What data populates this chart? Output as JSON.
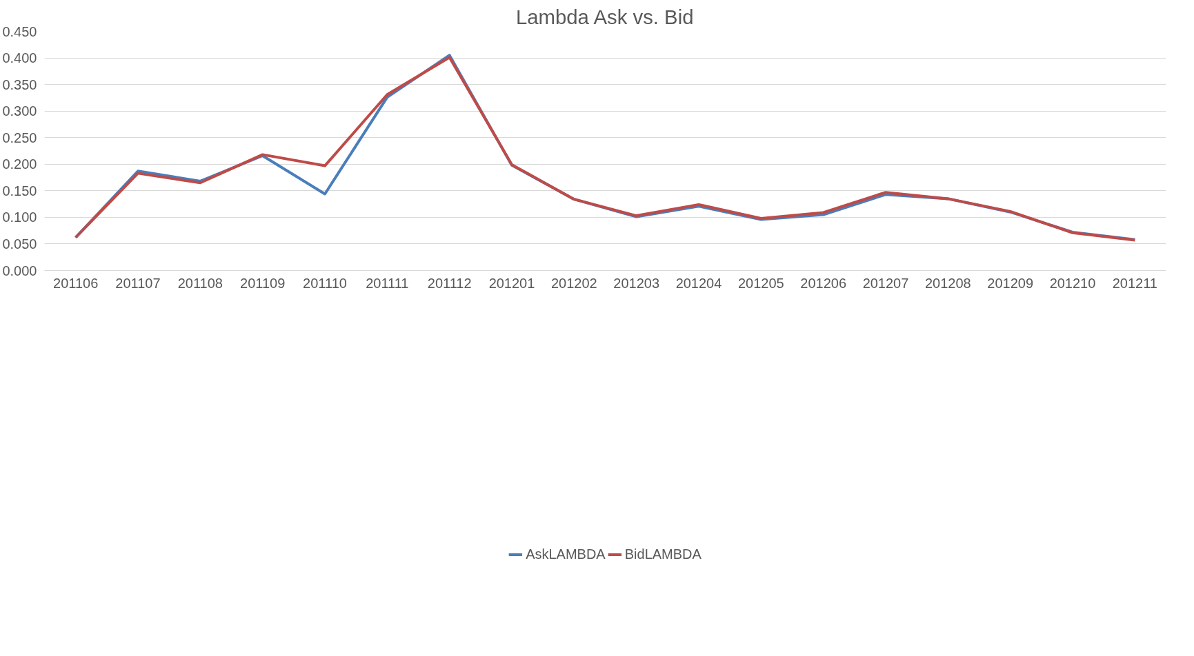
{
  "chart_data": {
    "type": "line",
    "title": "Lambda Ask vs. Bid",
    "categories": [
      "201106",
      "201107",
      "201108",
      "201109",
      "201110",
      "201111",
      "201112",
      "201201",
      "201202",
      "201203",
      "201204",
      "201205",
      "201206",
      "201207",
      "201208",
      "201209",
      "201210",
      "201211"
    ],
    "series": [
      {
        "name": "AskLAMBDA",
        "color": "#4a7ebb",
        "values": [
          0.062,
          0.187,
          0.168,
          0.216,
          0.144,
          0.326,
          0.405,
          0.198,
          0.134,
          0.101,
          0.121,
          0.096,
          0.105,
          0.143,
          0.135,
          0.11,
          0.072,
          0.058
        ]
      },
      {
        "name": "BidLAMBDA",
        "color": "#be4b48",
        "values": [
          0.062,
          0.183,
          0.165,
          0.218,
          0.197,
          0.331,
          0.401,
          0.199,
          0.134,
          0.103,
          0.124,
          0.098,
          0.109,
          0.147,
          0.135,
          0.111,
          0.071,
          0.057
        ]
      }
    ],
    "ylim": [
      0,
      0.45
    ],
    "yticks": [
      {
        "value": 0,
        "label": "0.000"
      },
      {
        "value": 0.05,
        "label": "0.050"
      },
      {
        "value": 0.1,
        "label": "0.100"
      },
      {
        "value": 0.15,
        "label": "0.150"
      },
      {
        "value": 0.2,
        "label": "0.200"
      },
      {
        "value": 0.25,
        "label": "0.250"
      },
      {
        "value": 0.3,
        "label": "0.300"
      },
      {
        "value": 0.35,
        "label": "0.350"
      },
      {
        "value": 0.4,
        "label": "0.400"
      },
      {
        "value": 0.45,
        "label": "0.450"
      }
    ],
    "grid": "y",
    "legend": "bottom",
    "marker": "none",
    "line_style": "solid"
  }
}
